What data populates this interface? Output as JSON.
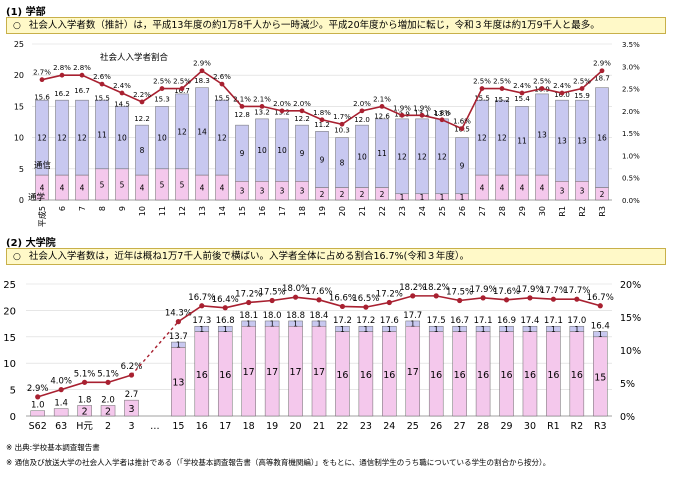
{
  "section1": {
    "heading": "(1) 学部",
    "note": "社会人入学者数（推計）は，平成13年度の約1万8千人から一時減少。平成20年度から増加に転じ，令和３年度は約1万9千人と最多。",
    "series_label_ratio": "社会人入学者割合",
    "series_label_tsushin": "通信",
    "series_label_tsugaku": "通学"
  },
  "section2": {
    "heading": "(2) 大学院",
    "note": "社会人入学者数は，近年は概ね1万7千人前後で横ばい。入学者全体に占める割合16.7%(令和３年度）。"
  },
  "footnotes": {
    "line1": "※ 出典:学校基本調査報告書",
    "line2": "※ 通信及び放送大学の社会人入学者は推計である（「学校基本調査報告書（高等教育機関編）」をもとに、通信制学生のうち職についている学生の割合から按分）。"
  },
  "colors": {
    "tsushin": "#c8c8f0",
    "tsugaku": "#f4c8ec",
    "line": "#a82030",
    "note_bg": "#fff9c8"
  },
  "chart_data": [
    {
      "type": "bar",
      "stacked": true,
      "categories": [
        "平成5",
        "6",
        "7",
        "8",
        "9",
        "10",
        "11",
        "12",
        "13",
        "14",
        "15",
        "16",
        "17",
        "18",
        "19",
        "20",
        "21",
        "22",
        "23",
        "24",
        "25",
        "26",
        "27",
        "28",
        "29",
        "30",
        "R1",
        "R2",
        "R3"
      ],
      "series": [
        {
          "name": "通学",
          "values": [
            4,
            4,
            4,
            5,
            5,
            4,
            5,
            5,
            4,
            4,
            3,
            3,
            3,
            3,
            2,
            2,
            2,
            2,
            1,
            1,
            1,
            1,
            4,
            4,
            4,
            4,
            3,
            3,
            2
          ]
        },
        {
          "name": "通信",
          "values": [
            12,
            12,
            12,
            11,
            10,
            8,
            10,
            12,
            14,
            12,
            9,
            10,
            10,
            9,
            9,
            8,
            10,
            11,
            12,
            12,
            12,
            9,
            12,
            12,
            11,
            13,
            13,
            13,
            16
          ]
        }
      ],
      "totals": [
        15.6,
        16.2,
        16.7,
        15.5,
        14.5,
        12.2,
        15.3,
        16.7,
        18.3,
        15.5,
        12.8,
        13.2,
        13.2,
        12.2,
        11.2,
        10.3,
        12.0,
        12.6,
        12.9,
        13.1,
        13.0,
        10.5,
        15.5,
        15.2,
        15.4,
        16.9,
        16.0,
        15.9,
        18.7
      ],
      "ratio": {
        "name": "社会人入学者割合",
        "values": [
          2.7,
          2.8,
          2.8,
          2.6,
          2.4,
          2.2,
          2.5,
          2.5,
          2.9,
          2.6,
          2.1,
          2.1,
          2.0,
          2.0,
          1.8,
          1.7,
          2.0,
          2.1,
          1.9,
          1.9,
          1.8,
          1.6,
          2.5,
          2.5,
          2.4,
          2.5,
          2.4,
          2.5,
          2.9
        ],
        "labels": [
          "2.7%",
          "2.8%",
          "2.8%",
          "2.6%",
          "2.4%",
          "2.2%",
          "2.5%",
          "2.5%",
          "2.9%",
          "2.6%",
          "2.1%",
          "2.1%",
          "2.0%",
          "2.0%",
          "1.8%",
          "1.7%",
          "2.0%",
          "2.1%",
          "1.9%",
          "1.9%",
          "1.8%",
          "1.6%",
          "2.5%",
          "2.5%",
          "2.4%",
          "2.5%",
          "2.4%",
          "2.5%",
          "2.9%"
        ]
      },
      "ylim_left": [
        0,
        25
      ],
      "yticks_left": [
        "0",
        "5",
        "10",
        "15",
        "20",
        "25"
      ],
      "ylim_right": [
        0,
        3.5
      ],
      "yticks_right": [
        "0.0%",
        "0.5%",
        "1.0%",
        "1.5%",
        "2.0%",
        "2.5%",
        "3.0%",
        "3.5%"
      ]
    },
    {
      "type": "bar",
      "stacked": true,
      "categories": [
        "S62",
        "63",
        "H元",
        "2",
        "3",
        "…",
        "15",
        "16",
        "17",
        "18",
        "19",
        "20",
        "21",
        "22",
        "23",
        "24",
        "25",
        "26",
        "27",
        "28",
        "29",
        "30",
        "R1",
        "R2",
        "R3"
      ],
      "series": [
        {
          "name": "lower",
          "values": [
            1.0,
            1.4,
            2,
            2,
            3,
            null,
            13,
            16,
            16,
            17,
            17,
            17,
            17,
            16,
            16,
            16,
            17,
            16,
            16,
            16,
            16,
            16,
            16,
            16,
            15
          ]
        },
        {
          "name": "upper",
          "values": [
            null,
            null,
            null,
            null,
            null,
            null,
            1,
            1,
            1,
            1,
            1,
            1,
            1,
            1,
            1,
            1,
            1,
            1,
            1,
            1,
            1,
            1,
            1,
            1,
            1
          ]
        }
      ],
      "inner_labels_lower": [
        "",
        "",
        "2",
        "2",
        "3",
        "",
        "13",
        "16",
        "16",
        "17",
        "17",
        "17",
        "17",
        "16",
        "16",
        "16",
        "17",
        "16",
        "16",
        "16",
        "16",
        "16",
        "16",
        "16",
        "15"
      ],
      "inner_labels_upper": [
        "",
        "",
        "",
        "",
        "",
        "",
        "1",
        "1",
        "1",
        "1",
        "1",
        "1",
        "1",
        "1",
        "1",
        "1",
        "1",
        "1",
        "1",
        "1",
        "1",
        "1",
        "1",
        "1",
        "1"
      ],
      "totals": [
        "1.0",
        "1.4",
        "1.8",
        "2.0",
        "2.7",
        "",
        "13.7",
        "17.3",
        "16.8",
        "18.1",
        "18.0",
        "18.8",
        "18.4",
        "17.2",
        "17.2",
        "17.6",
        "17.7",
        "17.5",
        "16.7",
        "17.1",
        "16.9",
        "17.4",
        "17.1",
        "17.0",
        "16.4"
      ],
      "ratio": {
        "values": [
          2.9,
          4.0,
          5.1,
          5.1,
          6.2,
          null,
          14.3,
          16.7,
          16.4,
          17.2,
          17.5,
          18.0,
          17.6,
          16.6,
          16.5,
          17.2,
          18.2,
          18.2,
          17.5,
          17.9,
          17.6,
          17.9,
          17.7,
          17.7,
          16.7
        ],
        "labels": [
          "2.9%",
          "4.0%",
          "5.1%",
          "5.1%",
          "6.2%",
          "",
          "14.3%",
          "16.7%",
          "16.4%",
          "17.2%",
          "17.5%",
          "18.0%",
          "17.6%",
          "16.6%",
          "16.5%",
          "17.2%",
          "18.2%",
          "18.2%",
          "17.5%",
          "17.9%",
          "17.6%",
          "17.9%",
          "17.7%",
          "17.7%",
          "16.7%"
        ]
      },
      "ylim_left": [
        0,
        25
      ],
      "yticks_left": [
        "0",
        "5",
        "10",
        "15",
        "20",
        "25"
      ],
      "ylim_right": [
        0,
        20
      ],
      "yticks_right": [
        "0%",
        "5%",
        "10%",
        "15%",
        "20%"
      ]
    }
  ]
}
